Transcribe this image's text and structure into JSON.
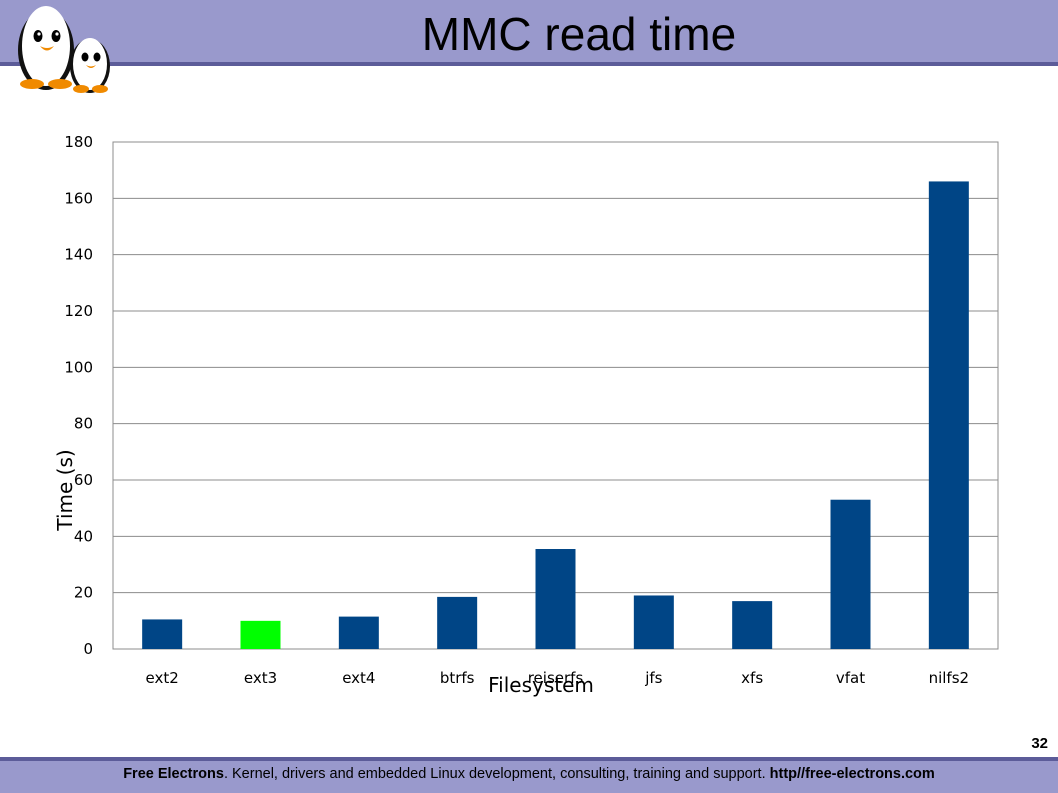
{
  "header": {
    "title": "MMC read time",
    "logo_icon": "penguins-logo-icon"
  },
  "footer": {
    "brand": "Free Electrons",
    "sep1": ". ",
    "text": "Kernel, drivers and embedded Linux development, consulting, training and support. ",
    "url": "http//free-electrons.com",
    "page_number": "32"
  },
  "chart_data": {
    "type": "bar",
    "title": "",
    "xlabel": "Filesystem",
    "ylabel": "Time (s)",
    "categories": [
      "ext2",
      "ext3",
      "ext4",
      "btrfs",
      "reiserfs",
      "jfs",
      "xfs",
      "vfat",
      "nilfs2"
    ],
    "values": [
      10.5,
      10.0,
      11.5,
      18.5,
      35.5,
      19.0,
      17.0,
      53.0,
      166.0
    ],
    "colors": [
      "#004586",
      "#00ff00",
      "#004586",
      "#004586",
      "#004586",
      "#004586",
      "#004586",
      "#004586",
      "#004586"
    ],
    "ylim": [
      0,
      180
    ],
    "yticks": [
      "0",
      "20",
      "40",
      "60",
      "80",
      "100",
      "120",
      "140",
      "160",
      "180"
    ],
    "grid": true,
    "legend": "none"
  }
}
